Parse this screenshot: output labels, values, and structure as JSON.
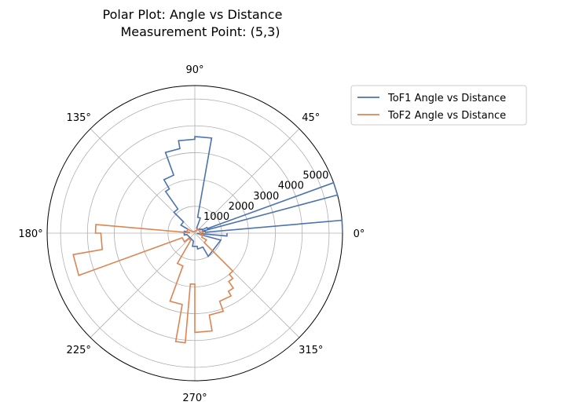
{
  "chart_data": {
    "type": "polar-line",
    "title": "Polar Plot: Angle vs Distance\nMeasurement Point: (5,3)",
    "angle_ticks": [
      "0°",
      "45°",
      "90°",
      "135°",
      "180°",
      "225°",
      "270°",
      "315°"
    ],
    "radial_ticks": [
      1000,
      2000,
      3000,
      4000,
      5000
    ],
    "radial_tick_labels": [
      "1000",
      "2000",
      "3000",
      "4000",
      "5000"
    ],
    "rlim": [
      0,
      5500
    ],
    "radial_label_angle_deg": 22.5,
    "grid": true,
    "legend_position": "upper right, outside plot",
    "series": [
      {
        "name": "ToF1 Angle vs Distance",
        "color": "#4c72b0",
        "points": [
          [
            0,
            5500
          ],
          [
            5,
            5500
          ],
          [
            5,
            400
          ],
          [
            10,
            400
          ],
          [
            10,
            300
          ],
          [
            15,
            300
          ],
          [
            15,
            5900
          ],
          [
            20,
            5900
          ],
          [
            20,
            500
          ],
          [
            25,
            500
          ],
          [
            25,
            300
          ],
          [
            30,
            300
          ],
          [
            30,
            250
          ],
          [
            40,
            250
          ],
          [
            40,
            200
          ],
          [
            70,
            200
          ],
          [
            70,
            600
          ],
          [
            80,
            600
          ],
          [
            80,
            3600
          ],
          [
            90,
            3600
          ],
          [
            90,
            3500
          ],
          [
            100,
            3500
          ],
          [
            100,
            3200
          ],
          [
            110,
            3200
          ],
          [
            110,
            2300
          ],
          [
            120,
            2300
          ],
          [
            120,
            1900
          ],
          [
            125,
            1900
          ],
          [
            125,
            1100
          ],
          [
            135,
            1100
          ],
          [
            135,
            600
          ],
          [
            150,
            600
          ],
          [
            150,
            300
          ],
          [
            170,
            300
          ],
          [
            170,
            400
          ],
          [
            190,
            400
          ],
          [
            190,
            300
          ],
          [
            260,
            300
          ],
          [
            260,
            500
          ],
          [
            280,
            500
          ],
          [
            280,
            600
          ],
          [
            300,
            600
          ],
          [
            300,
            1000
          ],
          [
            345,
            1000
          ],
          [
            345,
            200
          ],
          [
            350,
            200
          ],
          [
            350,
            100
          ],
          [
            355,
            100
          ],
          [
            355,
            1200
          ],
          [
            360,
            1200
          ]
        ]
      },
      {
        "name": "ToF2 Angle vs Distance",
        "color": "#dd8452",
        "points": [
          [
            0,
            300
          ],
          [
            10,
            300
          ],
          [
            10,
            200
          ],
          [
            60,
            200
          ],
          [
            60,
            100
          ],
          [
            150,
            100
          ],
          [
            150,
            300
          ],
          [
            170,
            300
          ],
          [
            170,
            200
          ],
          [
            175,
            200
          ],
          [
            175,
            3700
          ],
          [
            180,
            3700
          ],
          [
            180,
            3500
          ],
          [
            190,
            3500
          ],
          [
            190,
            4600
          ],
          [
            200,
            4600
          ],
          [
            200,
            500
          ],
          [
            220,
            500
          ],
          [
            220,
            300
          ],
          [
            240,
            300
          ],
          [
            240,
            1300
          ],
          [
            250,
            1300
          ],
          [
            250,
            2700
          ],
          [
            260,
            2700
          ],
          [
            260,
            4100
          ],
          [
            265,
            4100
          ],
          [
            265,
            1900
          ],
          [
            270,
            1900
          ],
          [
            270,
            3700
          ],
          [
            280,
            3700
          ],
          [
            280,
            3100
          ],
          [
            290,
            3100
          ],
          [
            290,
            2700
          ],
          [
            300,
            2700
          ],
          [
            300,
            2500
          ],
          [
            305,
            2500
          ],
          [
            305,
            2200
          ],
          [
            310,
            2200
          ],
          [
            310,
            2000
          ],
          [
            315,
            2000
          ],
          [
            315,
            500
          ],
          [
            330,
            500
          ],
          [
            330,
            300
          ],
          [
            350,
            300
          ],
          [
            350,
            200
          ],
          [
            360,
            200
          ]
        ]
      }
    ]
  }
}
